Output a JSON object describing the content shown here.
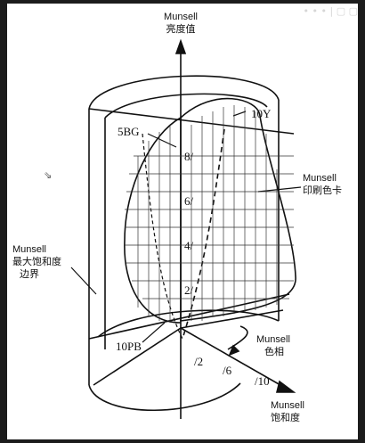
{
  "axes": {
    "value_en": "Munsell",
    "value_cn": "亮度值",
    "chroma_en": "Munsell",
    "chroma_cn": "饱和度",
    "hue_en": "Munsell",
    "hue_cn": "色相"
  },
  "labels": {
    "print_card_en": "Munsell",
    "print_card_cn": "印刷色卡",
    "chroma_boundary_en": "Munsell",
    "chroma_boundary_cn_1": "最大饱和度",
    "chroma_boundary_cn_2": "边界",
    "hue_10y": "10Y",
    "hue_5bg": "5BG",
    "hue_10pb": "10PB",
    "value_ticks": [
      "8/",
      "6/",
      "4/",
      "2/"
    ],
    "chroma_ticks": [
      "/2",
      "/6",
      "/10"
    ]
  },
  "watermark": "• • • | ▢ ▢",
  "cursor_icon": "pointer-cursor-icon"
}
